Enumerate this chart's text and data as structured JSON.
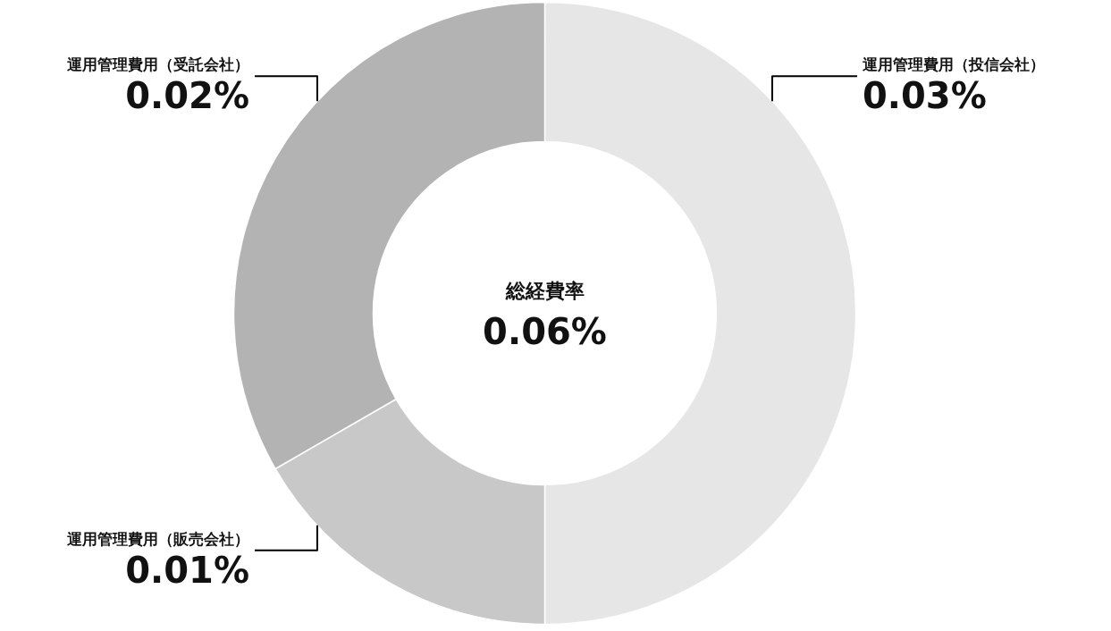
{
  "chart_data": {
    "type": "donut",
    "categories": [
      "運用管理費用（投信会社）",
      "運用管理費用（販売会社）",
      "運用管理費用（受託会社）"
    ],
    "values": [
      0.03,
      0.01,
      0.02
    ],
    "colors": [
      "#e6e6e6",
      "#c8c8c8",
      "#b3b3b3"
    ],
    "value_labels": [
      "0.03%",
      "0.01%",
      "0.02%"
    ],
    "annotations": [
      "総経費率",
      "0.06%"
    ],
    "legend": false
  }
}
